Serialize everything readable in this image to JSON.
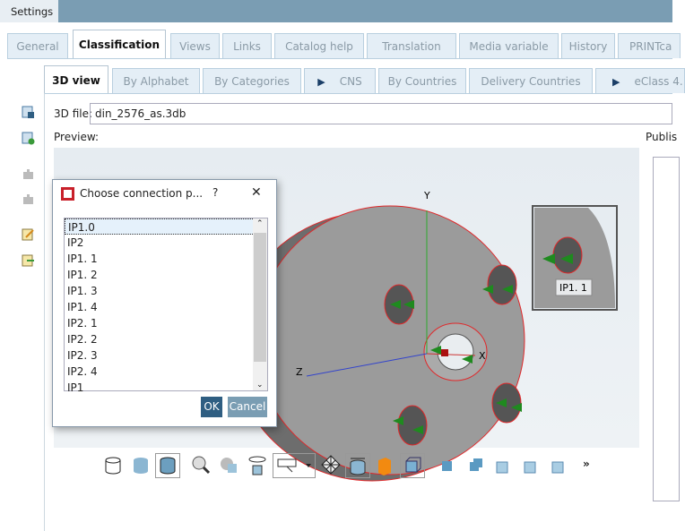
{
  "window": {
    "title": "Settings"
  },
  "main_tabs": [
    {
      "label": "General"
    },
    {
      "label": "Classification",
      "active": true
    },
    {
      "label": "Views"
    },
    {
      "label": "Links"
    },
    {
      "label": "Catalog help"
    },
    {
      "label": "Translation"
    },
    {
      "label": "Media variable"
    },
    {
      "label": "History"
    },
    {
      "label": "PRINTca"
    }
  ],
  "sub_tabs": [
    {
      "label": "3D view",
      "active": true
    },
    {
      "label": "By Alphabet"
    },
    {
      "label": "By Categories"
    },
    {
      "label": "CNS"
    },
    {
      "label": "By Countries"
    },
    {
      "label": "Delivery Countries"
    },
    {
      "label": "eClass 4."
    }
  ],
  "form": {
    "file_label": "3D file:",
    "file_value": "din_2576_as.3db",
    "preview_label": "Preview:",
    "publish_label": "Publis"
  },
  "viewer": {
    "axis_x": "X",
    "axis_y": "Y",
    "axis_z": "Z",
    "tooltip": "IP1. 1"
  },
  "dialog": {
    "title": "Choose connection p...",
    "help": "?",
    "close": "✕",
    "items": [
      "IP1.0",
      "IP2",
      "IP1. 1",
      "IP1. 2",
      "IP1. 3",
      "IP1. 4",
      "IP2. 1",
      "IP2. 2",
      "IP2. 3",
      "IP2. 4",
      "IP1"
    ],
    "selected": "IP1.0",
    "ok": "OK",
    "cancel": "Cancel"
  },
  "toolbar": {
    "more": "»"
  },
  "colors": {
    "titlebar": "#7a9db3",
    "ok": "#2f5e82",
    "cancel": "#7a9db3",
    "edge": "#e0282a"
  }
}
